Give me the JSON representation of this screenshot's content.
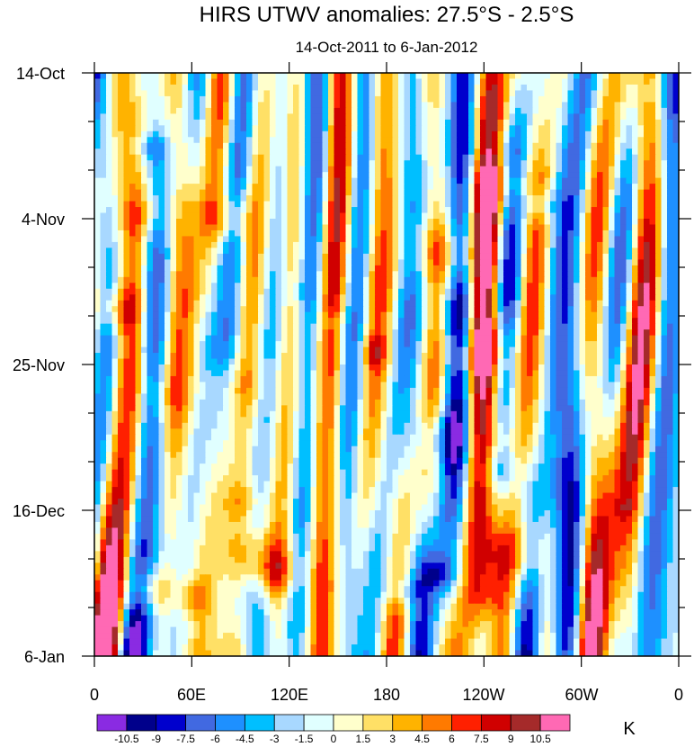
{
  "chart_data": {
    "type": "heatmap",
    "title": "HIRS UTWV anomalies: 27.5°S - 2.5°S",
    "subtitle": "14-Oct-2011 to 6-Jan-2012",
    "xlabel": "",
    "ylabel": "",
    "x_ticks": [
      "0",
      "60E",
      "120E",
      "180",
      "120W",
      "60W",
      "0"
    ],
    "y_ticks": [
      "14-Oct",
      "4-Nov",
      "25-Nov",
      "16-Dec",
      "6-Jan"
    ],
    "x_range_deg": [
      0,
      360
    ],
    "y_range_days": [
      0,
      84
    ],
    "colorbar": {
      "unit": "K",
      "labels": [
        "-10.5",
        "-9",
        "-7.5",
        "-6",
        "-4.5",
        "-3",
        "-1.5",
        "0",
        "1.5",
        "3",
        "4.5",
        "6",
        "7.5",
        "9",
        "10.5"
      ],
      "levels": [
        -10.5,
        -9,
        -7.5,
        -6,
        -4.5,
        -3,
        -1.5,
        0,
        1.5,
        3,
        4.5,
        6,
        7.5,
        9,
        10.5
      ],
      "colors": [
        "#8a2be2",
        "#00008b",
        "#0000cd",
        "#4169e1",
        "#1e90ff",
        "#00bfff",
        "#a8d8ff",
        "#e0ffff",
        "#ffffcc",
        "#ffe066",
        "#ffb300",
        "#ff7a00",
        "#ff2000",
        "#d00000",
        "#a52a2a",
        "#ff69b4"
      ]
    }
  }
}
